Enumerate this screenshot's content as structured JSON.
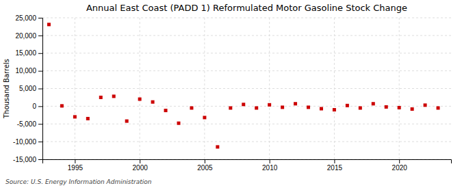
{
  "chart_data": {
    "type": "scatter",
    "title": "Annual East Coast (PADD 1) Reformulated Motor Gasoline Stock Change",
    "ylabel": "Thousand Barrels",
    "annotations": [
      "Source: U.S. Energy Information Administration"
    ],
    "x": [
      1993,
      1994,
      1995,
      1996,
      1997,
      1998,
      1999,
      2000,
      2001,
      2002,
      2003,
      2004,
      2005,
      2006,
      2007,
      2008,
      2009,
      2010,
      2011,
      2012,
      2013,
      2014,
      2015,
      2016,
      2017,
      2018,
      2019,
      2020,
      2021,
      2022,
      2023
    ],
    "values": [
      23100,
      100,
      -3000,
      -3500,
      2500,
      2800,
      -4200,
      2000,
      1200,
      -1200,
      -4800,
      -500,
      -3200,
      -11500,
      -500,
      500,
      -500,
      400,
      -300,
      700,
      -300,
      -700,
      -1000,
      200,
      -500,
      700,
      -200,
      -400,
      -800,
      300,
      -500
    ],
    "color": "#cc0000",
    "marker": "square",
    "xlim": [
      1992.5,
      2024
    ],
    "ylim": [
      -15000,
      25000
    ],
    "xticks": [
      1995,
      2000,
      2005,
      2010,
      2015,
      2020
    ],
    "yticks": [
      {
        "value": -15000,
        "label": "-15,000"
      },
      {
        "value": -10000,
        "label": "-10,000"
      },
      {
        "value": -5000,
        "label": "-5,000"
      },
      {
        "value": 0,
        "label": "0"
      },
      {
        "value": 5000,
        "label": "5,000"
      },
      {
        "value": 10000,
        "label": "10,000"
      },
      {
        "value": 15000,
        "label": "15,000"
      },
      {
        "value": 20000,
        "label": "20,000"
      },
      {
        "value": 25000,
        "label": "25,000"
      }
    ],
    "grid": true
  }
}
